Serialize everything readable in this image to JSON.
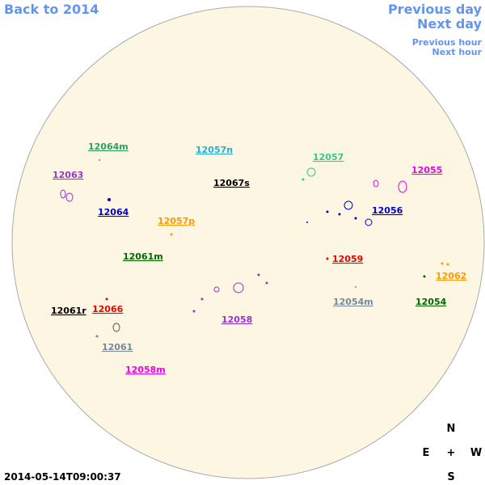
{
  "navigation": {
    "back": "Back to 2014",
    "previous_day": "Previous day",
    "next_day": "Next day",
    "previous_hour": "Previous hour",
    "next_hour": "Next hour"
  },
  "timestamp": "2014-05-14T09:00:37",
  "compass": {
    "north": "N",
    "east": "E",
    "center": "+",
    "west": "W",
    "south": "S"
  },
  "regions": [
    "12064m",
    "12057n",
    "12057",
    "12055",
    "12063",
    "12067s",
    "12064",
    "12056",
    "12057p",
    "12061m",
    "12059",
    "12062",
    "12054m",
    "12054",
    "12061r",
    "12066",
    "12058",
    "12061",
    "12058m"
  ]
}
